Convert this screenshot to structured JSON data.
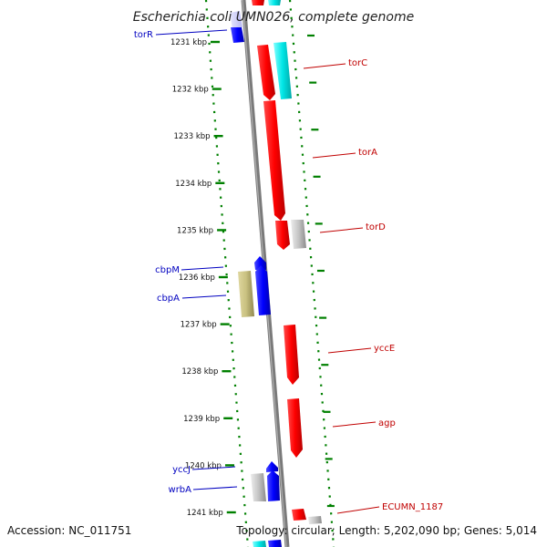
{
  "title": "Escherichia coli UMN026, complete genome",
  "footer": {
    "accession": "Accession: NC_011751",
    "summary": "Topology: circular; Length: 5,202,090 bp; Genes: 5,014"
  },
  "colors": {
    "forward": "#ff0000",
    "reverse": "#0000ff",
    "other": "#00e0e0",
    "pseudo": "#c0c0c0",
    "misc": "#c8c080",
    "tick": "#008000",
    "backbone": "#808080",
    "label_left": "#0000c0",
    "label_right": "#c00000"
  },
  "ticks": [
    {
      "label": "1231 kbp"
    },
    {
      "label": "1232 kbp"
    },
    {
      "label": "1233 kbp"
    },
    {
      "label": "1234 kbp"
    },
    {
      "label": "1235 kbp"
    },
    {
      "label": "1236 kbp"
    },
    {
      "label": "1237 kbp"
    },
    {
      "label": "1238 kbp"
    },
    {
      "label": "1239 kbp"
    },
    {
      "label": "1240 kbp"
    },
    {
      "label": "1241 kbp"
    }
  ],
  "genes_left": [
    {
      "name": "torR"
    },
    {
      "name": "cbpM"
    },
    {
      "name": "cbpA"
    },
    {
      "name": "yccJ"
    },
    {
      "name": "wrbA"
    }
  ],
  "genes_right": [
    {
      "name": "torC"
    },
    {
      "name": "torA"
    },
    {
      "name": "torD"
    },
    {
      "name": "yccE"
    },
    {
      "name": "agp"
    },
    {
      "name": "ECUMN_1187"
    }
  ]
}
